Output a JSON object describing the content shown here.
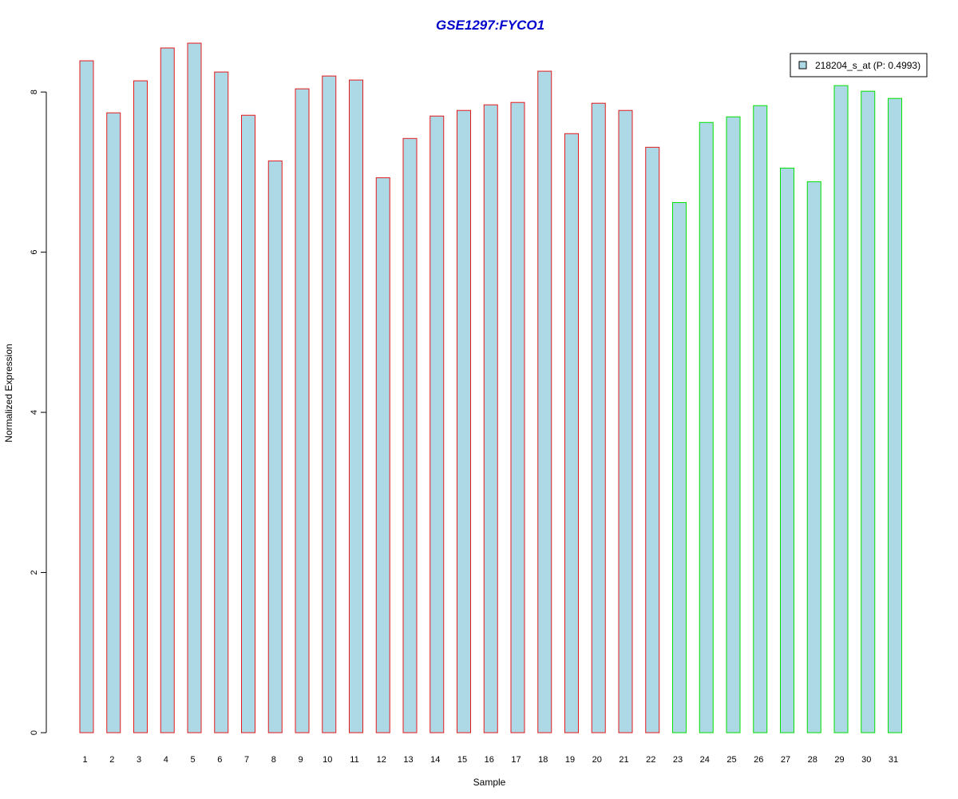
{
  "chart_data": {
    "type": "bar",
    "title": "GSE1297:FYCO1",
    "xlabel": "Sample",
    "ylabel": "Normalized Expression",
    "categories": [
      "1",
      "2",
      "3",
      "4",
      "5",
      "6",
      "7",
      "8",
      "9",
      "10",
      "11",
      "12",
      "13",
      "14",
      "15",
      "16",
      "17",
      "18",
      "19",
      "20",
      "21",
      "22",
      "23",
      "24",
      "25",
      "26",
      "27",
      "28",
      "29",
      "30",
      "31"
    ],
    "series": [
      {
        "name": "218204_s_at (P: 0.4993)",
        "values": [
          8.39,
          7.74,
          8.14,
          8.55,
          8.61,
          8.25,
          7.71,
          7.14,
          8.04,
          8.2,
          8.15,
          6.93,
          7.42,
          7.7,
          7.77,
          7.84,
          7.87,
          8.26,
          7.48,
          7.86,
          7.77,
          7.31,
          6.62,
          7.62,
          7.69,
          7.83,
          7.05,
          6.88,
          8.08,
          8.01,
          7.92
        ]
      }
    ],
    "groups": [
      {
        "range": [
          1,
          22
        ],
        "border_color": "#e31a1c"
      },
      {
        "range": [
          23,
          31
        ],
        "border_color": "#00e000"
      }
    ],
    "yticks": [
      0,
      2,
      4,
      6,
      8
    ],
    "ylim": [
      0,
      8.7
    ],
    "fill_color": "#add8e6",
    "title_color": "#0000cc",
    "legend_position": "top-right",
    "grid": false
  }
}
